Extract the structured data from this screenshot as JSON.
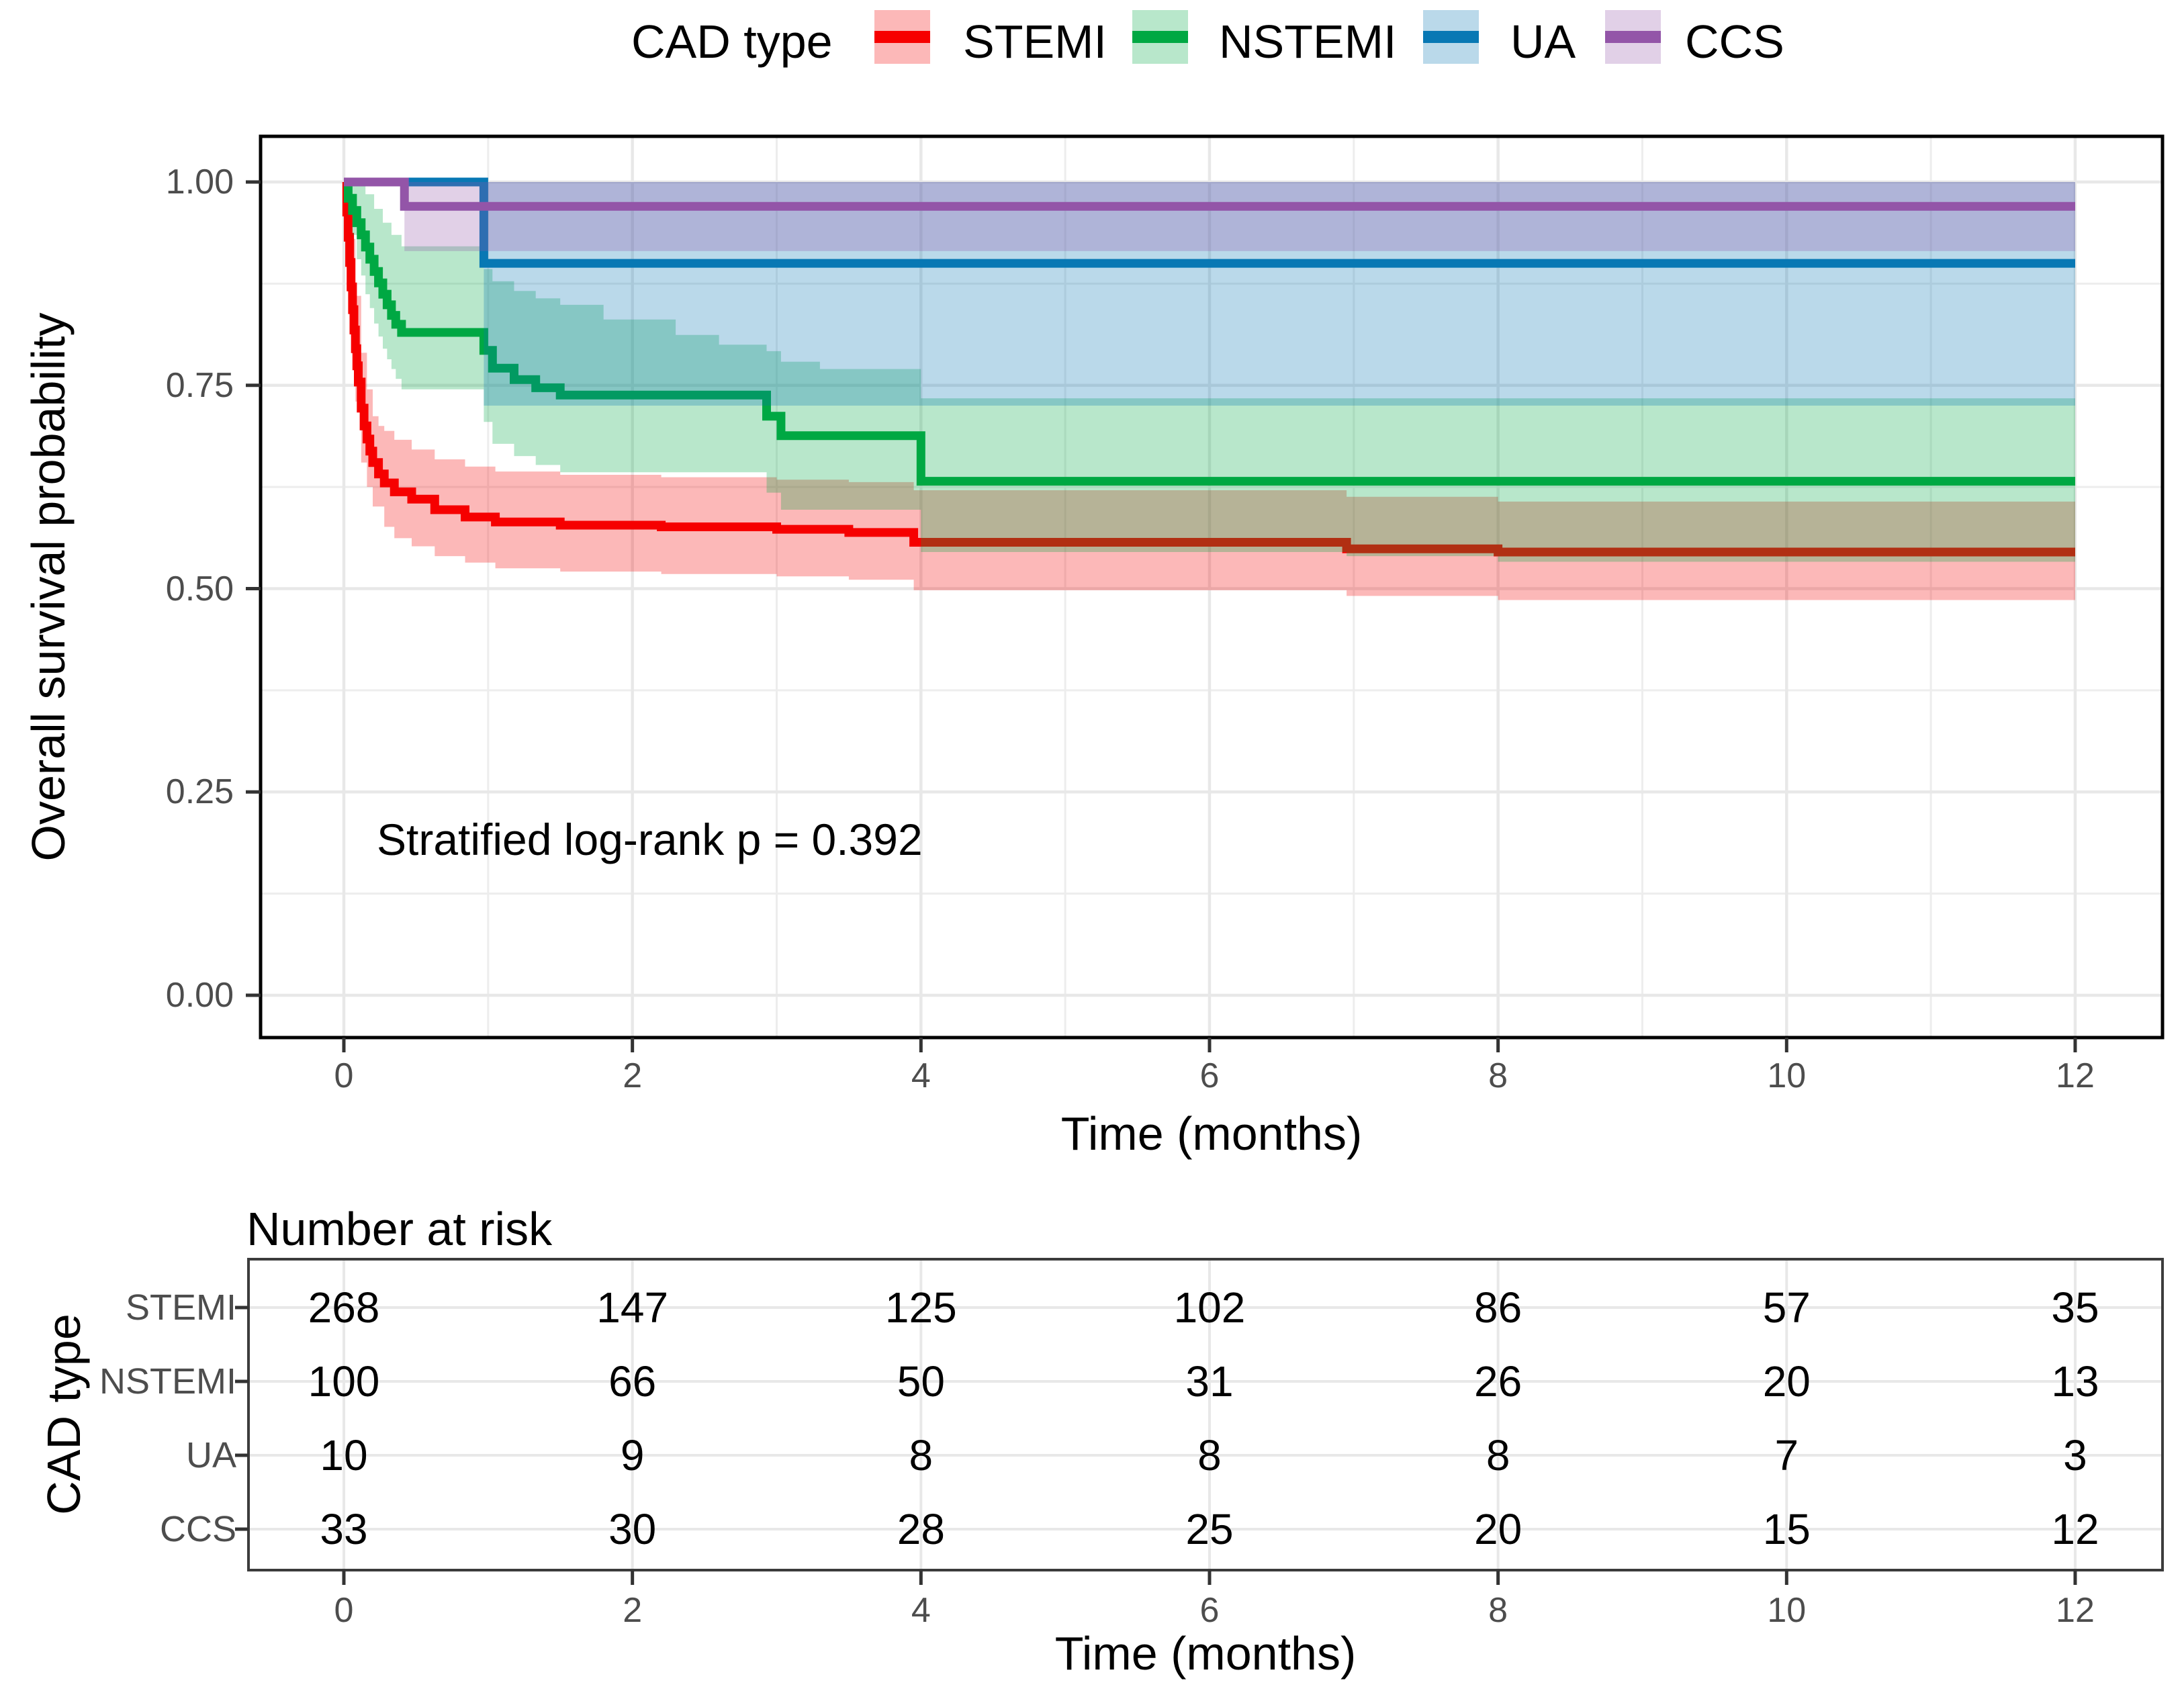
{
  "legend": {
    "title": "CAD type",
    "items": [
      {
        "label": "STEMI",
        "color": "#F60000"
      },
      {
        "label": "NSTEMI",
        "color": "#00A843"
      },
      {
        "label": "UA",
        "color": "#0878B4"
      },
      {
        "label": "CCS",
        "color": "#9355A8"
      }
    ]
  },
  "chart": {
    "y_axis_title": "Overall survival probability",
    "x_axis_title": "Time (months)",
    "annotation": "Stratified log-rank p = 0.392"
  },
  "chart_data": {
    "type": "line",
    "subtype": "kaplan-meier-step-with-confidence-bands",
    "title": "",
    "xlabel": "Time (months)",
    "ylabel": "Overall survival probability",
    "xlim": [
      0,
      12
    ],
    "ylim": [
      0,
      1
    ],
    "x_end": 12,
    "x_major_ticks": [
      0,
      2,
      4,
      6,
      8,
      10,
      12
    ],
    "x_minor_ticks": [
      1,
      3,
      5,
      7,
      9,
      11
    ],
    "y_major_ticks": [
      1.0,
      0.75,
      0.5,
      0.25,
      0.0
    ],
    "y_tick_labels": [
      "1.00",
      "0.75",
      "0.50",
      "0.25",
      "0.00"
    ],
    "y_minor_ticks": [
      0.875,
      0.625,
      0.375,
      0.125
    ],
    "grid": true,
    "legend_position": "top",
    "annotation": "Stratified log-rank p = 0.392",
    "ci_opacity": 0.28,
    "series": [
      {
        "name": "STEMI",
        "color": "#F60000",
        "steps": [
          [
            0,
            1
          ],
          [
            0.02,
            0.963
          ],
          [
            0.03,
            0.932
          ],
          [
            0.04,
            0.901
          ],
          [
            0.05,
            0.871
          ],
          [
            0.06,
            0.843
          ],
          [
            0.07,
            0.818
          ],
          [
            0.08,
            0.795
          ],
          [
            0.09,
            0.774
          ],
          [
            0.1,
            0.754
          ],
          [
            0.12,
            0.722
          ],
          [
            0.14,
            0.7
          ],
          [
            0.16,
            0.684
          ],
          [
            0.18,
            0.669
          ],
          [
            0.2,
            0.655
          ],
          [
            0.24,
            0.641
          ],
          [
            0.28,
            0.63
          ],
          [
            0.35,
            0.619
          ],
          [
            0.47,
            0.61
          ],
          [
            0.63,
            0.597
          ],
          [
            0.84,
            0.588
          ],
          [
            1.05,
            0.582
          ],
          [
            1.5,
            0.578
          ],
          [
            2.2,
            0.576
          ],
          [
            3.0,
            0.573
          ],
          [
            3.5,
            0.569
          ],
          [
            3.95,
            0.557
          ],
          [
            6.95,
            0.549
          ],
          [
            8.0,
            0.545
          ]
        ],
        "ci_upper": [
          [
            0.02,
            0.995
          ],
          [
            0.05,
            0.93
          ],
          [
            0.08,
            0.86
          ],
          [
            0.12,
            0.79
          ],
          [
            0.16,
            0.745
          ],
          [
            0.2,
            0.712
          ],
          [
            0.24,
            0.7
          ],
          [
            0.28,
            0.694
          ],
          [
            0.35,
            0.683
          ],
          [
            0.47,
            0.671
          ],
          [
            0.63,
            0.659
          ],
          [
            0.84,
            0.65
          ],
          [
            1.05,
            0.644
          ],
          [
            1.5,
            0.64
          ],
          [
            2.2,
            0.637
          ],
          [
            3.0,
            0.634
          ],
          [
            3.5,
            0.631
          ],
          [
            3.95,
            0.621
          ],
          [
            6.95,
            0.613
          ],
          [
            8.0,
            0.607
          ]
        ],
        "ci_lower": [
          [
            0.02,
            0.92
          ],
          [
            0.05,
            0.81
          ],
          [
            0.08,
            0.73
          ],
          [
            0.12,
            0.655
          ],
          [
            0.16,
            0.625
          ],
          [
            0.2,
            0.601
          ],
          [
            0.28,
            0.576
          ],
          [
            0.35,
            0.562
          ],
          [
            0.47,
            0.552
          ],
          [
            0.63,
            0.54
          ],
          [
            0.84,
            0.532
          ],
          [
            1.05,
            0.525
          ],
          [
            1.5,
            0.521
          ],
          [
            2.2,
            0.518
          ],
          [
            3.0,
            0.515
          ],
          [
            3.5,
            0.511
          ],
          [
            3.95,
            0.498
          ],
          [
            6.95,
            0.491
          ],
          [
            8.0,
            0.486
          ]
        ]
      },
      {
        "name": "NSTEMI",
        "color": "#00A843",
        "steps": [
          [
            0,
            1
          ],
          [
            0.03,
            0.98
          ],
          [
            0.06,
            0.965
          ],
          [
            0.09,
            0.95
          ],
          [
            0.12,
            0.935
          ],
          [
            0.15,
            0.92
          ],
          [
            0.18,
            0.905
          ],
          [
            0.21,
            0.89
          ],
          [
            0.24,
            0.876
          ],
          [
            0.27,
            0.862
          ],
          [
            0.3,
            0.849
          ],
          [
            0.33,
            0.836
          ],
          [
            0.36,
            0.825
          ],
          [
            0.4,
            0.815
          ],
          [
            0.97,
            0.793
          ],
          [
            1.03,
            0.771
          ],
          [
            1.18,
            0.757
          ],
          [
            1.33,
            0.747
          ],
          [
            1.5,
            0.738
          ],
          [
            2.93,
            0.712
          ],
          [
            3.03,
            0.688
          ],
          [
            4.0,
            0.632
          ]
        ],
        "ci_upper": [
          [
            0.03,
            1.0
          ],
          [
            0.15,
            0.985
          ],
          [
            0.21,
            0.967
          ],
          [
            0.27,
            0.95
          ],
          [
            0.33,
            0.935
          ],
          [
            0.4,
            0.921
          ],
          [
            0.97,
            0.893
          ],
          [
            1.03,
            0.878
          ],
          [
            1.18,
            0.866
          ],
          [
            1.33,
            0.857
          ],
          [
            1.5,
            0.849
          ],
          [
            1.8,
            0.831
          ],
          [
            2.3,
            0.812
          ],
          [
            2.6,
            0.8
          ],
          [
            2.93,
            0.792
          ],
          [
            3.03,
            0.779
          ],
          [
            3.3,
            0.77
          ],
          [
            4.0,
            0.734
          ]
        ],
        "ci_lower": [
          [
            0.03,
            0.96
          ],
          [
            0.06,
            0.935
          ],
          [
            0.09,
            0.905
          ],
          [
            0.12,
            0.885
          ],
          [
            0.15,
            0.862
          ],
          [
            0.18,
            0.845
          ],
          [
            0.21,
            0.826
          ],
          [
            0.24,
            0.81
          ],
          [
            0.27,
            0.795
          ],
          [
            0.3,
            0.782
          ],
          [
            0.33,
            0.77
          ],
          [
            0.36,
            0.758
          ],
          [
            0.4,
            0.745
          ],
          [
            0.97,
            0.705
          ],
          [
            1.03,
            0.678
          ],
          [
            1.18,
            0.663
          ],
          [
            1.33,
            0.652
          ],
          [
            1.5,
            0.643
          ],
          [
            2.93,
            0.618
          ],
          [
            3.03,
            0.597
          ],
          [
            4.0,
            0.545
          ],
          [
            6.95,
            0.54
          ],
          [
            8.0,
            0.533
          ]
        ]
      },
      {
        "name": "UA",
        "color": "#0878B4",
        "steps": [
          [
            0,
            1
          ],
          [
            0.97,
            0.9
          ]
        ],
        "ci_upper": [
          [
            0.97,
            1.0
          ]
        ],
        "ci_lower": [
          [
            0.97,
            0.725
          ]
        ]
      },
      {
        "name": "CCS",
        "color": "#9355A8",
        "steps": [
          [
            0,
            1
          ],
          [
            0.42,
            0.97
          ]
        ],
        "ci_upper": [
          [
            0.42,
            1.0
          ]
        ],
        "ci_lower": [
          [
            0.42,
            0.915
          ]
        ]
      }
    ]
  },
  "risk_table": {
    "title": "Number at risk",
    "y_axis_title": "CAD type",
    "x_axis_title": "Time (months)",
    "x_ticks": [
      0,
      2,
      4,
      6,
      8,
      10,
      12
    ],
    "rows": [
      {
        "label": "STEMI",
        "counts": [
          268,
          147,
          125,
          102,
          86,
          57,
          35
        ]
      },
      {
        "label": "NSTEMI",
        "counts": [
          100,
          66,
          50,
          31,
          26,
          20,
          13
        ]
      },
      {
        "label": "UA",
        "counts": [
          10,
          9,
          8,
          8,
          8,
          7,
          3
        ]
      },
      {
        "label": "CCS",
        "counts": [
          33,
          30,
          28,
          25,
          20,
          15,
          12
        ]
      }
    ]
  }
}
